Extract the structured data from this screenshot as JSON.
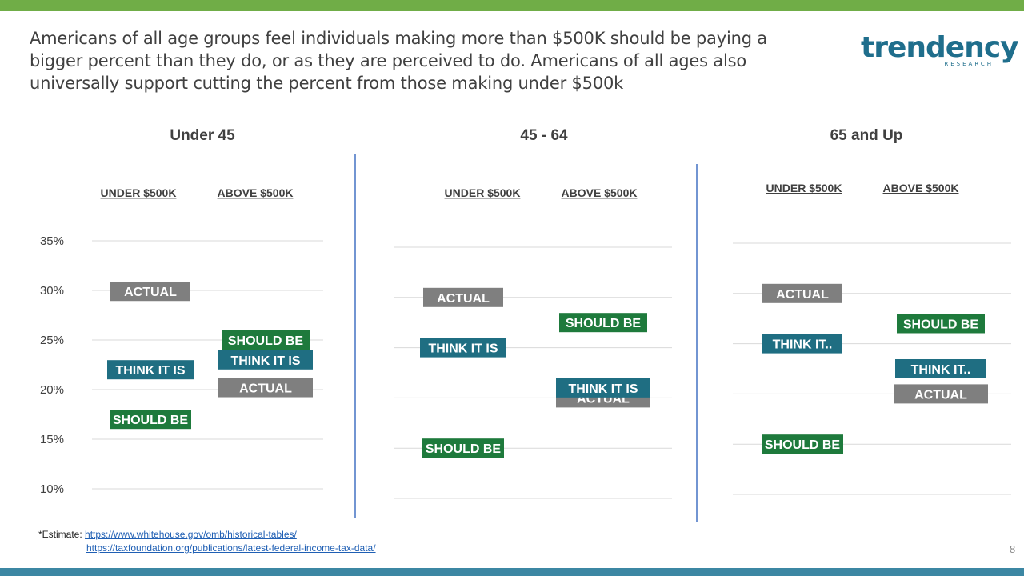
{
  "title": "Americans of all age groups feel individuals making more than $500K should be paying a bigger percent than they do, or as they are perceived to do. Americans of all ages also universally support cutting the percent from those making under $500k",
  "logo": {
    "word": "trendency",
    "sub": "RESEARCH"
  },
  "footnote": {
    "prefix": "*Estimate: ",
    "link1": "https://www.whitehouse.gov/omb/historical-tables/",
    "link2": "https://taxfoundation.org/publications/latest-federal-income-tax-data/"
  },
  "page_number": "8",
  "colors": {
    "actual": "#7f7f7f",
    "think_it_is": "#1f6e82",
    "should_be": "#1e7a3c",
    "divider": "#4472c4",
    "grid": "#d9d9d9"
  },
  "chart_data": [
    {
      "type": "scatter",
      "title": "Under 45",
      "categories": [
        "UNDER $500K",
        "ABOVE $500K"
      ],
      "ylim": [
        10,
        35
      ],
      "yticks": [
        "35%",
        "30%",
        "25%",
        "20%",
        "15%",
        "10%"
      ],
      "series": [
        {
          "name": "ACTUAL",
          "values": [
            29.9,
            20.2
          ]
        },
        {
          "name": "THINK IT IS",
          "values": [
            22.0,
            23.0
          ]
        },
        {
          "name": "SHOULD BE",
          "values": [
            17.0,
            25.0
          ]
        }
      ]
    },
    {
      "type": "scatter",
      "title": "45 - 64",
      "categories": [
        "UNDER $500K",
        "ABOVE $500K"
      ],
      "ylim": [
        10,
        35
      ],
      "series": [
        {
          "name": "ACTUAL",
          "values": [
            30.0,
            20.0
          ]
        },
        {
          "name": "THINK IT IS",
          "values": [
            25.0,
            21.0
          ]
        },
        {
          "name": "SHOULD BE",
          "values": [
            15.0,
            27.5
          ]
        }
      ]
    },
    {
      "type": "scatter",
      "title": "65 and Up",
      "categories": [
        "UNDER $500K",
        "ABOVE $500K"
      ],
      "ylim": [
        10,
        35
      ],
      "series": [
        {
          "name": "ACTUAL",
          "values": [
            30.0,
            20.0
          ]
        },
        {
          "name": "THINK IT..",
          "values": [
            25.0,
            22.5
          ]
        },
        {
          "name": "SHOULD BE",
          "values": [
            15.0,
            27.0
          ]
        }
      ]
    }
  ]
}
